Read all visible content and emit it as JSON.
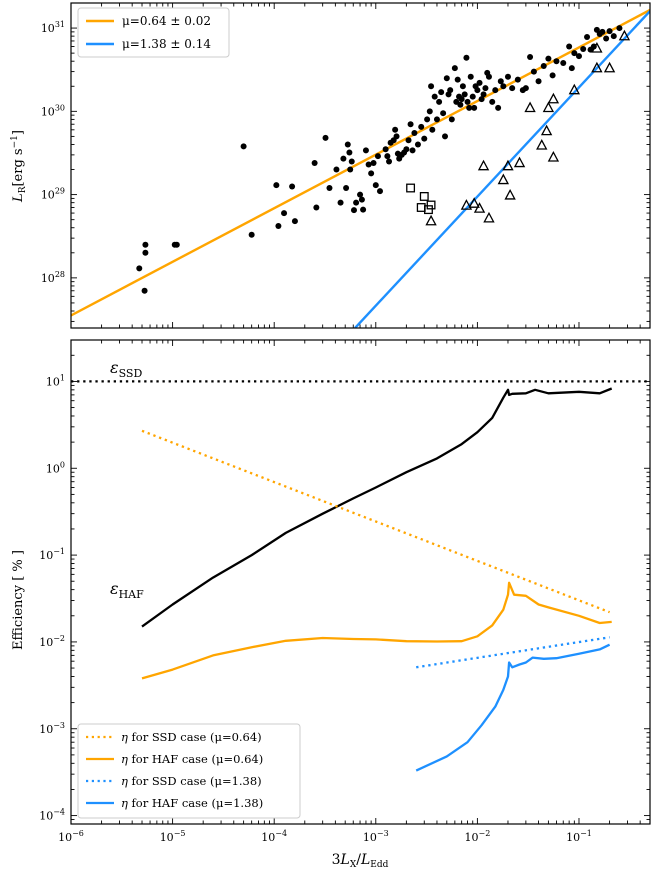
{
  "chart_data": [
    {
      "type": "scatter",
      "panel": "top",
      "xscale": "log",
      "yscale": "log",
      "xlim": [
        1e-06,
        0.5
      ],
      "ylim": [
        2.5e+27,
        2e+31
      ],
      "ylabel_main": "L",
      "ylabel_sub": "R",
      "ylabel_units": "[erg s",
      "ylabel_exp": "−1",
      "ylabel_close": "]",
      "yticks": [
        {
          "value": 1e+28,
          "base": "10",
          "exp": "28"
        },
        {
          "value": 1e+29,
          "base": "10",
          "exp": "29"
        },
        {
          "value": 1e+30,
          "base": "10",
          "exp": "30"
        },
        {
          "value": 1e+31,
          "base": "10",
          "exp": "31"
        }
      ],
      "legend_position": "top-left",
      "series": [
        {
          "name": "μ=0.64 ± 0.02",
          "kind": "fit-line",
          "color": "#FFA500",
          "slope": 0.64,
          "x": [
            1e-06,
            0.5
          ],
          "y": [
            3.54e+27,
            1.65e+31
          ]
        },
        {
          "name": "μ=1.38 ± 0.14",
          "kind": "fit-line",
          "color": "#1E90FF",
          "slope": 1.38,
          "x": [
            0.000625,
            0.5
          ],
          "y": [
            2.5e+27,
            1.6e+31
          ]
        },
        {
          "kind": "filled-circles",
          "color": "#000000",
          "points": [
            [
              4.7e-06,
              1.3e+28
            ],
            [
              5.4e-06,
              2e+28
            ],
            [
              5.4e-06,
              2.5e+28
            ],
            [
              5.3e-06,
              7e+27
            ],
            [
              1.05e-05,
              2.5e+28
            ],
            [
              1.1e-05,
              2.5e+28
            ],
            [
              5e-05,
              3.8e+29
            ],
            [
              6e-05,
              3.3e+28
            ],
            [
              0.000105,
              1.3e+29
            ],
            [
              0.00011,
              4.2e+28
            ],
            [
              0.000125,
              6e+28
            ],
            [
              0.00015,
              1.25e+29
            ],
            [
              0.00016,
              4.8e+28
            ],
            [
              0.00025,
              2.4e+29
            ],
            [
              0.00026,
              7e+28
            ],
            [
              0.00032,
              4.8e+29
            ],
            [
              0.00035,
              1.2e+29
            ],
            [
              0.00041,
              2e+29
            ],
            [
              0.00045,
              8e+28
            ],
            [
              0.00048,
              2.7e+29
            ],
            [
              0.00051,
              1.2e+29
            ],
            [
              0.00053,
              4e+29
            ],
            [
              0.00055,
              3.2e+29
            ],
            [
              0.00056,
              2e+29
            ],
            [
              0.00058,
              2.5e+29
            ],
            [
              0.00061,
              6.5e+28
            ],
            [
              0.00064,
              8e+28
            ],
            [
              0.0007,
              1e+29
            ],
            [
              0.00073,
              8.7e+28
            ],
            [
              0.00075,
              6.6e+28
            ],
            [
              0.0008,
              3.4e+29
            ],
            [
              0.00085,
              2.3e+29
            ],
            [
              0.0009,
              1.8e+29
            ],
            [
              0.00095,
              2.4e+29
            ],
            [
              0.001,
              1.3e+29
            ],
            [
              0.00105,
              2.9e+29
            ],
            [
              0.0011,
              1.1e+29
            ],
            [
              0.00125,
              3.5e+29
            ],
            [
              0.0013,
              2.9e+29
            ],
            [
              0.00135,
              2.5e+29
            ],
            [
              0.0014,
              4.2e+29
            ],
            [
              0.0015,
              4.5e+29
            ],
            [
              0.00155,
              6e+29
            ],
            [
              0.0016,
              5e+29
            ],
            [
              0.00165,
              3.1e+29
            ],
            [
              0.0017,
              2.7e+29
            ],
            [
              0.0018,
              3e+29
            ],
            [
              0.0019,
              3.2e+29
            ],
            [
              0.002,
              3.5e+29
            ],
            [
              0.0021,
              4.5e+29
            ],
            [
              0.0022,
              7e+29
            ],
            [
              0.0023,
              3.4e+29
            ],
            [
              0.0024,
              5.5e+29
            ],
            [
              0.0026,
              4e+29
            ],
            [
              0.0028,
              6.5e+29
            ],
            [
              0.003,
              4.7e+29
            ],
            [
              0.0032,
              8e+29
            ],
            [
              0.0034,
              1e+30
            ],
            [
              0.0035,
              2e+30
            ],
            [
              0.0036,
              6e+29
            ],
            [
              0.0038,
              1.5e+30
            ],
            [
              0.004,
              8e+29
            ],
            [
              0.0042,
              1.3e+30
            ],
            [
              0.0044,
              1.7e+30
            ],
            [
              0.0046,
              9.5e+29
            ],
            [
              0.0048,
              5e+29
            ],
            [
              0.005,
              2.5e+30
            ],
            [
              0.0052,
              1.6e+30
            ],
            [
              0.0054,
              1.8e+30
            ],
            [
              0.0056,
              8e+29
            ],
            [
              0.006,
              3.3e+30
            ],
            [
              0.0062,
              1.3e+30
            ],
            [
              0.0064,
              2.4e+30
            ],
            [
              0.0066,
              1.5e+30
            ],
            [
              0.0068,
              1.2e+30
            ],
            [
              0.007,
              1.4e+30
            ],
            [
              0.0072,
              2e+30
            ],
            [
              0.0075,
              1.6e+30
            ],
            [
              0.0078,
              4.4e+30
            ],
            [
              0.008,
              1.3e+30
            ],
            [
              0.0083,
              1.1e+30
            ],
            [
              0.0086,
              2.6e+30
            ],
            [
              0.009,
              1.5e+30
            ],
            [
              0.0093,
              1.1e+30
            ],
            [
              0.0096,
              2e+30
            ],
            [
              0.01,
              1.8e+30
            ],
            [
              0.0105,
              2.2e+30
            ],
            [
              0.011,
              1.4e+30
            ],
            [
              0.0115,
              1.6e+30
            ],
            [
              0.012,
              1.9e+30
            ],
            [
              0.0125,
              2.9e+30
            ],
            [
              0.013,
              2.6e+30
            ],
            [
              0.014,
              1.3e+30
            ],
            [
              0.015,
              1.8e+30
            ],
            [
              0.016,
              1.1e+30
            ],
            [
              0.017,
              2.3e+30
            ],
            [
              0.018,
              2e+30
            ],
            [
              0.02,
              2.6e+30
            ],
            [
              0.022,
              1.9e+30
            ],
            [
              0.025,
              2.4e+30
            ],
            [
              0.028,
              1.8e+30
            ],
            [
              0.03,
              1.9e+30
            ],
            [
              0.033,
              4.5e+30
            ],
            [
              0.036,
              3e+30
            ],
            [
              0.04,
              2.3e+30
            ],
            [
              0.045,
              3.5e+30
            ],
            [
              0.05,
              4.3e+30
            ],
            [
              0.055,
              2.7e+30
            ],
            [
              0.06,
              4e+30
            ],
            [
              0.07,
              3.8e+30
            ],
            [
              0.08,
              6e+30
            ],
            [
              0.085,
              3.3e+30
            ],
            [
              0.09,
              5e+30
            ],
            [
              0.1,
              4.6e+30
            ],
            [
              0.11,
              5.6e+30
            ],
            [
              0.12,
              7.8e+30
            ],
            [
              0.13,
              5.5e+30
            ],
            [
              0.14,
              6e+30
            ],
            [
              0.15,
              9.5e+30
            ],
            [
              0.16,
              8.5e+30
            ],
            [
              0.17,
              9e+30
            ],
            [
              0.185,
              7.5e+30
            ],
            [
              0.2,
              9.2e+30
            ],
            [
              0.22,
              8e+30
            ],
            [
              0.25,
              1e+31
            ]
          ]
        },
        {
          "kind": "open-squares",
          "color": "#000000",
          "points": [
            [
              0.0022,
              1.2e+29
            ],
            [
              0.0028,
              7e+28
            ],
            [
              0.003,
              9.5e+28
            ],
            [
              0.0033,
              6.6e+28
            ],
            [
              0.0035,
              7.5e+28
            ]
          ]
        },
        {
          "kind": "open-triangles",
          "color": "#000000",
          "points": [
            [
              0.0035,
              4.8e+28
            ],
            [
              0.0078,
              7.4e+28
            ],
            [
              0.0093,
              7.8e+28
            ],
            [
              0.0105,
              6.8e+28
            ],
            [
              0.0115,
              2.2e+29
            ],
            [
              0.013,
              5.2e+28
            ],
            [
              0.018,
              1.5e+29
            ],
            [
              0.02,
              2.2e+29
            ],
            [
              0.021,
              9.8e+28
            ],
            [
              0.026,
              2.4e+29
            ],
            [
              0.033,
              1.1e+30
            ],
            [
              0.043,
              3.9e+29
            ],
            [
              0.048,
              5.8e+29
            ],
            [
              0.05,
              1.1e+30
            ],
            [
              0.056,
              2.8e+29
            ],
            [
              0.056,
              1.4e+30
            ],
            [
              0.09,
              1.8e+30
            ],
            [
              0.15,
              3.3e+30
            ],
            [
              0.15,
              5.7e+30
            ],
            [
              0.2,
              3.3e+30
            ],
            [
              0.28,
              8e+30
            ]
          ]
        }
      ]
    },
    {
      "type": "line",
      "panel": "bottom",
      "xscale": "log",
      "yscale": "log",
      "xlim": [
        1e-06,
        0.5
      ],
      "ylim": [
        8e-05,
        30
      ],
      "xlabel_coef": "3",
      "xlabel_main": "L",
      "xlabel_sub": "X",
      "xlabel_slash": "/",
      "xlabel_main2": "L",
      "xlabel_sub2": "Edd",
      "ylabel": "Efficiency [ % ]",
      "xticks": [
        {
          "value": 1e-06,
          "base": "10",
          "exp": "−6"
        },
        {
          "value": 1e-05,
          "base": "10",
          "exp": "−5"
        },
        {
          "value": 0.0001,
          "base": "10",
          "exp": "−4"
        },
        {
          "value": 0.001,
          "base": "10",
          "exp": "−3"
        },
        {
          "value": 0.01,
          "base": "10",
          "exp": "−2"
        },
        {
          "value": 0.1,
          "base": "10",
          "exp": "−1"
        }
      ],
      "yticks": [
        {
          "value": 0.0001,
          "base": "10",
          "exp": "−4"
        },
        {
          "value": 0.001,
          "base": "10",
          "exp": "−3"
        },
        {
          "value": 0.01,
          "base": "10",
          "exp": "−2"
        },
        {
          "value": 0.1,
          "base": "10",
          "exp": "−1"
        },
        {
          "value": 1,
          "base": "10",
          "exp": "0"
        },
        {
          "value": 10,
          "base": "10",
          "exp": "1"
        }
      ],
      "annotations": [
        {
          "sym": "ε",
          "sub": "SSD",
          "x": 1.2e-05,
          "y": 16
        },
        {
          "sym": "ε",
          "sub": "HAF",
          "x": 1.2e-05,
          "y": 0.055
        }
      ],
      "legend_position": "bottom-left",
      "series": [
        {
          "name": "ε_SSD",
          "color": "#000000",
          "dash": "dotted",
          "in_legend": false,
          "x": [
            1e-06,
            0.5
          ],
          "y": [
            10,
            10
          ]
        },
        {
          "name": "ε_HAF",
          "color": "#000000",
          "dash": "solid",
          "in_legend": false,
          "x": [
            5e-06,
            1e-05,
            2.5e-05,
            6e-05,
            0.00013,
            0.0003,
            0.0006,
            0.001,
            0.002,
            0.004,
            0.007,
            0.01,
            0.014,
            0.018,
            0.02,
            0.0205,
            0.022,
            0.03,
            0.037,
            0.05,
            0.1,
            0.16,
            0.21
          ],
          "y": [
            0.015,
            0.027,
            0.055,
            0.1,
            0.18,
            0.3,
            0.45,
            0.6,
            0.9,
            1.3,
            1.9,
            2.6,
            3.8,
            6.5,
            8,
            7,
            7.2,
            7.3,
            8,
            7.3,
            7.6,
            7.3,
            8.3
          ]
        },
        {
          "name": "η for SSD case",
          "mu": "(μ=0.64)",
          "color": "#FFA500",
          "dash": "dotted",
          "in_legend": true,
          "x": [
            5e-06,
            0.2
          ],
          "y": [
            2.7,
            0.022
          ]
        },
        {
          "name": "η for HAF case",
          "mu": "(μ=0.64)",
          "color": "#FFA500",
          "dash": "solid",
          "in_legend": true,
          "x": [
            5e-06,
            1e-05,
            2.5e-05,
            6e-05,
            0.00013,
            0.0003,
            0.0006,
            0.001,
            0.002,
            0.004,
            0.007,
            0.01,
            0.014,
            0.018,
            0.02,
            0.0205,
            0.023,
            0.03,
            0.04,
            0.05,
            0.1,
            0.16,
            0.21
          ],
          "y": [
            0.0038,
            0.0048,
            0.007,
            0.0087,
            0.0103,
            0.0111,
            0.0108,
            0.0107,
            0.0102,
            0.0101,
            0.0102,
            0.0116,
            0.0155,
            0.0235,
            0.035,
            0.048,
            0.035,
            0.034,
            0.027,
            0.025,
            0.02,
            0.0165,
            0.017
          ]
        },
        {
          "name": "η for SSD case",
          "mu": "(μ=1.38)",
          "color": "#1E90FF",
          "dash": "dotted",
          "in_legend": true,
          "x": [
            0.0025,
            0.2
          ],
          "y": [
            0.0051,
            0.0113
          ]
        },
        {
          "name": "η for HAF case",
          "mu": "(μ=1.38)",
          "color": "#1E90FF",
          "dash": "solid",
          "in_legend": true,
          "x": [
            0.0025,
            0.005,
            0.008,
            0.011,
            0.015,
            0.018,
            0.02,
            0.0205,
            0.022,
            0.026,
            0.03,
            0.035,
            0.045,
            0.06,
            0.1,
            0.16,
            0.2
          ],
          "y": [
            0.00033,
            0.00048,
            0.0007,
            0.0011,
            0.0018,
            0.0028,
            0.004,
            0.0058,
            0.0051,
            0.0055,
            0.0058,
            0.0066,
            0.0064,
            0.0065,
            0.0073,
            0.0082,
            0.0093
          ]
        }
      ]
    }
  ]
}
